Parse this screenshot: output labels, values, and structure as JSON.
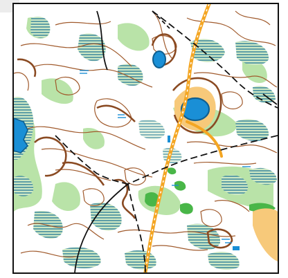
{
  "map": {
    "type": "orienteering-map",
    "colors": {
      "contour": "#a05a2c",
      "forest_green": "#b9e3a8",
      "green_dark": "#49b648",
      "water": "#1a8fd6",
      "marsh_lines": "#2d7f98",
      "path_black": "#111111",
      "road_orange": "#f4a623",
      "open_land": "#f7c97a",
      "paper": "#ffffff"
    },
    "features": [
      "contour-lines",
      "marsh-areas",
      "vegetation-green",
      "lakes",
      "paths",
      "road",
      "open-land"
    ]
  }
}
